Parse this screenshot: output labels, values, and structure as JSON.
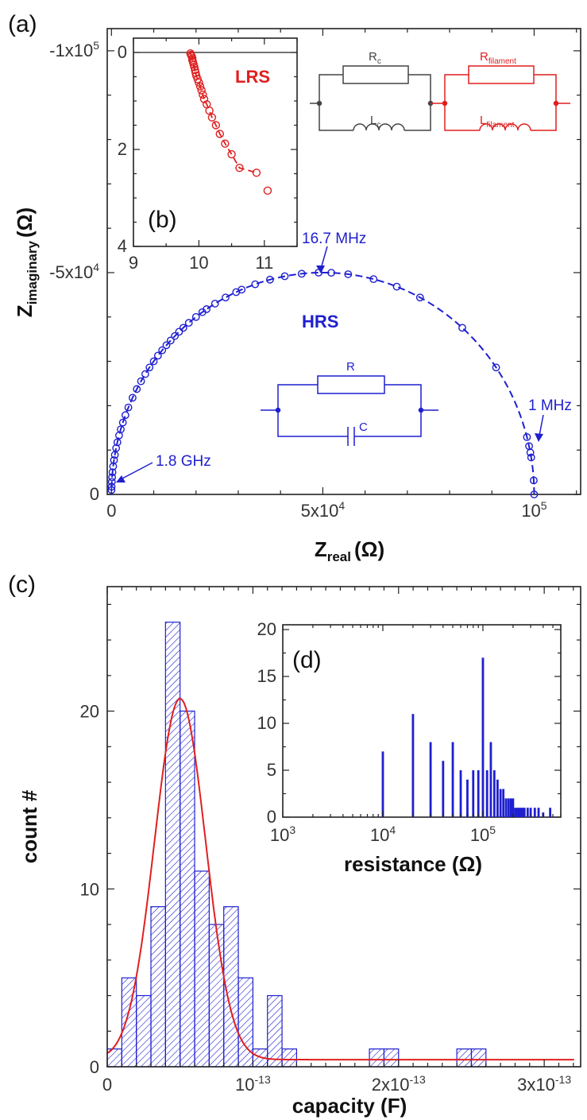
{
  "panels": {
    "a": "(a)",
    "b": "(b)",
    "c": "(c)",
    "d": "(d)"
  },
  "colors": {
    "hrs": "#1f1fd0",
    "lrs": "#e01f1f",
    "fit": "#e02020",
    "ink": "#222222"
  },
  "chart_data": [
    {
      "id": "a",
      "type": "scatter",
      "xlabel_main": "Z",
      "xlabel_sub": "real",
      "xlabel_unit": "(Ω)",
      "ylabel_main": "Z",
      "ylabel_sub": "imaginary",
      "ylabel_unit": "(Ω)",
      "xlim": [
        -1000,
        111000
      ],
      "ylim": [
        0,
        -105000
      ],
      "y_reversed": true,
      "xticks": [
        {
          "v": 0,
          "label": "0"
        },
        {
          "v": 50000,
          "label": "5x10",
          "exp": "4"
        },
        {
          "v": 100000,
          "label": "10",
          "exp": "5"
        }
      ],
      "yticks": [
        {
          "v": 0,
          "label": "0"
        },
        {
          "v": -50000,
          "label": "-5x10",
          "exp": "4"
        },
        {
          "v": -100000,
          "label": "-1x10",
          "exp": "5"
        }
      ],
      "series_label": "HRS",
      "annotations": [
        {
          "text": "16.7 MHz",
          "x": 49000,
          "y": -50000
        },
        {
          "text": "1 MHz",
          "x": 99500,
          "y": -9000
        },
        {
          "text": "1.8 GHz",
          "x": 200,
          "y": -400
        }
      ],
      "circuit": {
        "r": "R",
        "c": "C"
      },
      "semicircle": {
        "r": 50000,
        "cx": 50000
      },
      "points_x": [
        100000,
        99900,
        99300,
        99100,
        98800,
        98300,
        91000,
        83000,
        73000,
        67500,
        62000,
        56000,
        52000,
        49000,
        45000,
        41000,
        37500,
        34000,
        30800,
        29500,
        27000,
        24500,
        22500,
        21500,
        20000,
        18300,
        17000,
        16000,
        15000,
        14000,
        13000,
        12000,
        11000,
        10000,
        9000,
        8000,
        7000,
        6000,
        5000,
        4000,
        3300,
        2700,
        2200,
        1800,
        1400,
        1100,
        800,
        600,
        400,
        250,
        150,
        80,
        30,
        10
      ]
    },
    {
      "id": "b",
      "type": "scatter",
      "xlim": [
        9,
        11.5
      ],
      "ylim": [
        0,
        4
      ],
      "y_reversed": true,
      "xticks": [
        {
          "v": 9,
          "label": "9"
        },
        {
          "v": 10,
          "label": "10"
        },
        {
          "v": 11,
          "label": "11"
        }
      ],
      "yticks": [
        {
          "v": 0,
          "label": "0"
        },
        {
          "v": 2,
          "label": "2"
        },
        {
          "v": 4,
          "label": "4"
        }
      ],
      "series_label": "LRS",
      "points": [
        [
          9.87,
          0.02
        ],
        [
          9.88,
          0.05
        ],
        [
          9.89,
          0.08
        ],
        [
          9.9,
          0.12
        ],
        [
          9.9,
          0.16
        ],
        [
          9.91,
          0.2
        ],
        [
          9.92,
          0.25
        ],
        [
          9.93,
          0.3
        ],
        [
          9.94,
          0.36
        ],
        [
          9.95,
          0.42
        ],
        [
          9.96,
          0.48
        ],
        [
          9.98,
          0.55
        ],
        [
          10.0,
          0.62
        ],
        [
          10.02,
          0.7
        ],
        [
          10.04,
          0.78
        ],
        [
          10.06,
          0.87
        ],
        [
          10.08,
          0.96
        ],
        [
          10.12,
          1.07
        ],
        [
          10.16,
          1.2
        ],
        [
          10.2,
          1.34
        ],
        [
          10.26,
          1.5
        ],
        [
          10.32,
          1.68
        ],
        [
          10.4,
          1.88
        ],
        [
          10.5,
          2.1
        ],
        [
          10.62,
          2.38
        ],
        [
          10.88,
          2.48
        ],
        [
          11.05,
          2.85
        ]
      ],
      "circuit": {
        "rc": "R",
        "rc_sub": "c",
        "lc": "L",
        "lc_sub": "c",
        "rf": "R",
        "rf_sub": "filament",
        "lf": "L",
        "lf_sub": "filament"
      }
    },
    {
      "id": "c",
      "type": "bar",
      "xlabel": "capacity (F)",
      "ylabel": "count #",
      "xlim": [
        0,
        3.25e-13
      ],
      "ylim": [
        0,
        27
      ],
      "bin_width": 1e-14,
      "xticks": [
        {
          "v": 0,
          "label": "0"
        },
        {
          "v": 1e-13,
          "label": "10",
          "exp": "-13"
        },
        {
          "v": 2e-13,
          "label": "2x10",
          "exp": "-13"
        },
        {
          "v": 3e-13,
          "label": "3x10",
          "exp": "-13"
        }
      ],
      "yticks": [
        {
          "v": 0,
          "label": "0"
        },
        {
          "v": 10,
          "label": "10"
        },
        {
          "v": 20,
          "label": "20"
        }
      ],
      "bins": [
        0,
        1e-14,
        2e-14,
        3e-14,
        4e-14,
        5e-14,
        6e-14,
        7e-14,
        8e-14,
        9e-14,
        1e-13,
        1.1e-13,
        1.2e-13,
        1.8e-13,
        1.9e-13,
        2.4e-13,
        2.5e-13
      ],
      "counts": [
        1,
        5,
        4,
        9,
        25,
        20,
        11,
        8,
        9,
        5,
        1,
        4,
        1,
        1,
        1,
        1,
        1
      ],
      "fit": {
        "type": "gaussian",
        "amplitude": 20.3,
        "center": 5e-14,
        "sigma": 1.75e-14,
        "offset": 0.4
      }
    },
    {
      "id": "d",
      "type": "bar",
      "xlabel": "resistance (Ω)",
      "x_log": true,
      "xlim": [
        1000,
        600000
      ],
      "ylim": [
        0,
        20
      ],
      "xticks": [
        {
          "v": 1000,
          "label": "10",
          "exp": "3"
        },
        {
          "v": 10000,
          "label": "10",
          "exp": "4"
        },
        {
          "v": 100000,
          "label": "10",
          "exp": "5"
        }
      ],
      "yticks": [
        {
          "v": 0,
          "label": "0"
        },
        {
          "v": 5,
          "label": "5"
        },
        {
          "v": 10,
          "label": "10"
        },
        {
          "v": 15,
          "label": "15"
        },
        {
          "v": 20,
          "label": "20"
        }
      ],
      "x": [
        10000,
        20000,
        30000,
        40000,
        50000,
        60000,
        70000,
        80000,
        90000,
        100000,
        110000,
        120000,
        130000,
        140000,
        150000,
        160000,
        170000,
        180000,
        190000,
        200000,
        210000,
        220000,
        230000,
        240000,
        250000,
        260000,
        280000,
        300000,
        330000,
        360000,
        400000,
        470000
      ],
      "values": [
        7,
        11,
        8,
        6,
        8,
        5,
        4,
        5,
        5,
        17,
        5,
        8,
        5,
        4,
        3,
        3,
        2,
        2,
        2,
        2,
        1,
        1,
        1,
        1,
        1,
        1,
        1,
        1,
        1,
        1,
        0.5,
        1
      ]
    }
  ]
}
